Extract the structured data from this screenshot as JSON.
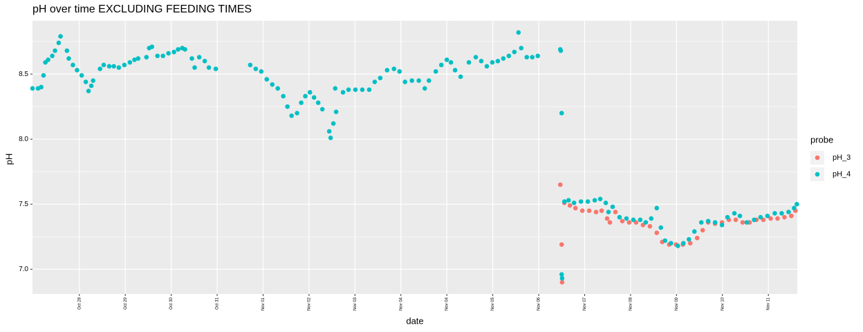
{
  "chart_data": {
    "type": "scatter",
    "title": "pH over time EXCLUDING FEEDING TIMES",
    "x_label": "date",
    "y_label": "pH",
    "legend_title": "probe",
    "legend_position": "right",
    "xlim": [
      -1.02,
      15.63
    ],
    "ylim": [
      6.81,
      8.91
    ],
    "xticks": [
      {
        "value": 0,
        "label": "Oct 28"
      },
      {
        "value": 1,
        "label": "Oct 29"
      },
      {
        "value": 2,
        "label": "Oct 30"
      },
      {
        "value": 3,
        "label": "Oct 31"
      },
      {
        "value": 4,
        "label": "Nov 01"
      },
      {
        "value": 5,
        "label": "Nov 02"
      },
      {
        "value": 6,
        "label": "Nov 03"
      },
      {
        "value": 7,
        "label": "Nov 04"
      },
      {
        "value": 8,
        "label": "Nov 04"
      },
      {
        "value": 9,
        "label": "Nov 05"
      },
      {
        "value": 10,
        "label": "Nov 06"
      },
      {
        "value": 11,
        "label": "Nov 07"
      },
      {
        "value": 12,
        "label": "Nov 08"
      },
      {
        "value": 13,
        "label": "Nov 09"
      },
      {
        "value": 14,
        "label": "Nov 10"
      },
      {
        "value": 15,
        "label": "Nov 11"
      }
    ],
    "yticks": [
      {
        "value": 7,
        "label": "7.0"
      },
      7.5,
      {
        "value": 8,
        "label": "8.0"
      },
      8.5
    ],
    "y_minor_grid": [
      7.25,
      7.75,
      8.25,
      8.75
    ],
    "grid": true,
    "background": "#ebebeb",
    "series": [
      {
        "name": "pH_3",
        "color": "#F8766D",
        "x": [
          10.47,
          10.5,
          10.51,
          10.56,
          10.68,
          10.8,
          10.95,
          11.1,
          11.25,
          11.37,
          11.49,
          11.55,
          11.67,
          11.82,
          11.97,
          12.12,
          12.27,
          12.42,
          12.57,
          12.69,
          12.84,
          12.99,
          13.14,
          13.3,
          13.45,
          13.57,
          13.69,
          13.84,
          13.99,
          14.14,
          14.29,
          14.44,
          14.59,
          14.74,
          14.89,
          15.05,
          15.2,
          15.35,
          15.5,
          15.59
        ],
        "values": [
          7.65,
          7.19,
          6.9,
          7.51,
          7.49,
          7.47,
          7.45,
          7.45,
          7.44,
          7.45,
          7.39,
          7.36,
          7.44,
          7.37,
          7.36,
          7.36,
          7.34,
          7.33,
          7.28,
          7.21,
          7.19,
          7.19,
          7.19,
          7.2,
          7.24,
          7.3,
          7.36,
          7.35,
          7.36,
          7.38,
          7.38,
          7.36,
          7.36,
          7.38,
          7.38,
          7.39,
          7.39,
          7.4,
          7.41,
          7.45
        ]
      },
      {
        "name": "pH_4",
        "color": "#00BFC4",
        "x": [
          -1.02,
          -0.9,
          -0.83,
          -0.78,
          -0.74,
          -0.68,
          -0.59,
          -0.53,
          -0.45,
          -0.41,
          -0.27,
          -0.23,
          -0.14,
          -0.05,
          0.05,
          0.14,
          0.2,
          0.26,
          0.3,
          0.45,
          0.53,
          0.65,
          0.75,
          0.86,
          0.98,
          1.1,
          1.2,
          1.28,
          1.46,
          1.52,
          1.58,
          1.7,
          1.82,
          1.94,
          2.06,
          2.15,
          2.24,
          2.3,
          2.45,
          2.51,
          2.61,
          2.73,
          2.82,
          2.97,
          3.72,
          3.84,
          3.96,
          4.08,
          4.2,
          4.32,
          4.44,
          4.53,
          4.62,
          4.74,
          4.83,
          4.92,
          5.02,
          5.11,
          5.2,
          5.29,
          5.44,
          5.47,
          5.53,
          5.59,
          5.57,
          5.74,
          5.86,
          6.01,
          6.16,
          6.31,
          6.43,
          6.55,
          6.7,
          6.85,
          6.97,
          7.09,
          7.24,
          7.39,
          7.52,
          7.61,
          7.76,
          7.88,
          8.0,
          8.09,
          8.18,
          8.3,
          8.48,
          8.63,
          8.75,
          8.87,
          8.99,
          9.11,
          9.23,
          9.35,
          9.47,
          9.56,
          9.62,
          9.74,
          9.86,
          9.98,
          10.47,
          10.48,
          10.5,
          10.5,
          10.51,
          10.56,
          10.65,
          10.77,
          10.92,
          11.07,
          11.22,
          11.34,
          11.46,
          11.52,
          11.61,
          11.76,
          11.91,
          12.06,
          12.21,
          12.33,
          12.45,
          12.57,
          12.66,
          12.75,
          12.88,
          13.03,
          13.15,
          13.27,
          13.39,
          13.54,
          13.69,
          13.84,
          13.99,
          14.11,
          14.26,
          14.38,
          14.53,
          14.69,
          14.83,
          14.98,
          15.14,
          15.29,
          15.44,
          15.56,
          15.62
        ],
        "values": [
          8.39,
          8.39,
          8.4,
          8.49,
          8.59,
          8.61,
          8.64,
          8.68,
          8.74,
          8.79,
          8.68,
          8.62,
          8.57,
          8.53,
          8.49,
          8.44,
          8.37,
          8.41,
          8.45,
          8.54,
          8.57,
          8.56,
          8.56,
          8.55,
          8.57,
          8.59,
          8.61,
          8.62,
          8.63,
          8.7,
          8.71,
          8.64,
          8.64,
          8.66,
          8.67,
          8.69,
          8.7,
          8.69,
          8.62,
          8.55,
          8.63,
          8.6,
          8.55,
          8.54,
          8.57,
          8.54,
          8.52,
          8.46,
          8.42,
          8.39,
          8.33,
          8.25,
          8.18,
          8.2,
          8.28,
          8.33,
          8.36,
          8.32,
          8.28,
          8.23,
          8.06,
          8.01,
          8.12,
          8.21,
          8.39,
          8.36,
          8.38,
          8.38,
          8.38,
          8.38,
          8.44,
          8.47,
          8.53,
          8.54,
          8.52,
          8.44,
          8.45,
          8.45,
          8.39,
          8.45,
          8.52,
          8.57,
          8.61,
          8.59,
          8.53,
          8.48,
          8.59,
          8.63,
          8.6,
          8.56,
          8.59,
          8.6,
          8.62,
          8.64,
          8.67,
          8.82,
          8.7,
          8.63,
          8.63,
          8.64,
          8.69,
          8.68,
          8.2,
          6.96,
          6.93,
          7.52,
          7.53,
          7.51,
          7.52,
          7.52,
          7.53,
          7.54,
          7.51,
          7.44,
          7.48,
          7.4,
          7.39,
          7.38,
          7.38,
          7.36,
          7.39,
          7.47,
          7.32,
          7.22,
          7.2,
          7.18,
          7.2,
          7.23,
          7.29,
          7.36,
          7.37,
          7.36,
          7.34,
          7.4,
          7.43,
          7.41,
          7.36,
          7.38,
          7.4,
          7.41,
          7.43,
          7.43,
          7.44,
          7.47,
          7.5
        ]
      }
    ]
  }
}
